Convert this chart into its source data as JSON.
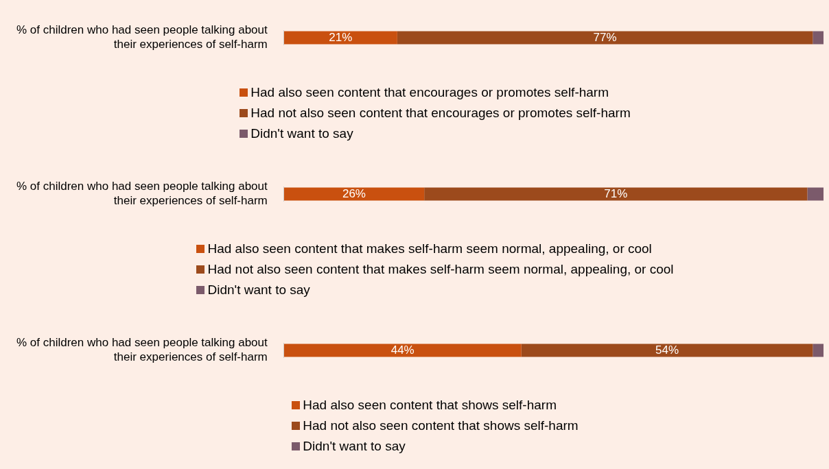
{
  "chart_data": [
    {
      "type": "bar",
      "orientation": "horizontal",
      "stacked": true,
      "categories": [
        "% of children who had seen people talking about their experiences of self-harm"
      ],
      "xlim": [
        0,
        100
      ],
      "tick_labels": "y",
      "grid": false,
      "legend": "bottom",
      "series": [
        {
          "name": "Had also seen content that encourages or promotes self-harm",
          "color": "#c9500f",
          "values": [
            21
          ],
          "value_labels": [
            "21%"
          ]
        },
        {
          "name": "Had not also seen content that encourages or promotes self-harm",
          "color": "#9c4a1c",
          "values": [
            77
          ],
          "value_labels": [
            "77%"
          ]
        },
        {
          "name": "Didn't want to say",
          "color": "#7b5a6b",
          "values": [
            2
          ],
          "value_labels": [
            null
          ]
        }
      ]
    },
    {
      "type": "bar",
      "orientation": "horizontal",
      "stacked": true,
      "categories": [
        "% of children who had seen people talking about their experiences of self-harm"
      ],
      "xlim": [
        0,
        100
      ],
      "tick_labels": "y",
      "grid": false,
      "legend": "bottom",
      "series": [
        {
          "name": "Had also seen content that makes self-harm seem normal, appealing, or cool",
          "color": "#c9500f",
          "values": [
            26
          ],
          "value_labels": [
            "26%"
          ]
        },
        {
          "name": "Had not also seen content that makes self-harm seem normal, appealing, or cool",
          "color": "#9c4a1c",
          "values": [
            71
          ],
          "value_labels": [
            "71%"
          ]
        },
        {
          "name": "Didn't want to say",
          "color": "#7b5a6b",
          "values": [
            3
          ],
          "value_labels": [
            null
          ]
        }
      ]
    },
    {
      "type": "bar",
      "orientation": "horizontal",
      "stacked": true,
      "categories": [
        "% of children who had seen people talking about their experiences of self-harm"
      ],
      "xlim": [
        0,
        100
      ],
      "tick_labels": "y",
      "grid": false,
      "legend": "bottom",
      "series": [
        {
          "name": "Had also seen content that shows self-harm",
          "color": "#c9500f",
          "values": [
            44
          ],
          "value_labels": [
            "44%"
          ]
        },
        {
          "name": "Had not also seen content that shows self-harm",
          "color": "#9c4a1c",
          "values": [
            54
          ],
          "value_labels": [
            "54%"
          ]
        },
        {
          "name": "Didn't want to say",
          "color": "#7b5a6b",
          "values": [
            2
          ],
          "value_labels": [
            null
          ]
        }
      ]
    }
  ]
}
